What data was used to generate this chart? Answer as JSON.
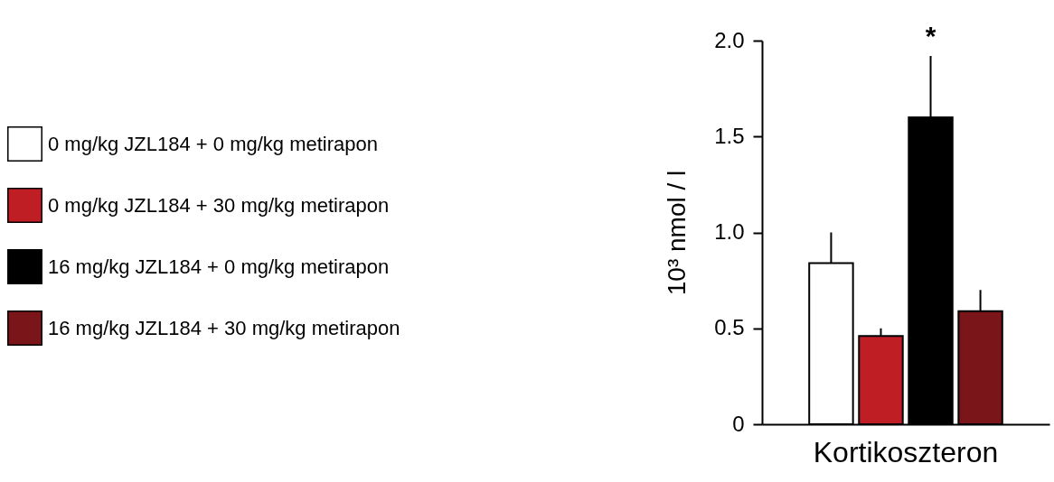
{
  "chart_data": {
    "type": "bar",
    "categories": [
      "Kortikoszteron"
    ],
    "ylabel": "10³ nmol / l",
    "series": [
      {
        "name": "0 mg/kg JZL184 + 0 mg/kg metirapon",
        "color": "#ffffff",
        "values": [
          0.84
        ],
        "errors": [
          [
            0.84,
            1.0
          ]
        ]
      },
      {
        "name": "0 mg/kg JZL184 + 30 mg/kg metirapon",
        "color": "#bf1e24",
        "values": [
          0.46
        ],
        "errors": [
          [
            0.46,
            0.5
          ]
        ]
      },
      {
        "name": "16 mg/kg JZL184 + 0 mg/kg metirapon",
        "color": "#000000",
        "values": [
          1.6
        ],
        "errors": [
          [
            1.6,
            1.92
          ]
        ]
      },
      {
        "name": "16 mg/kg JZL184 + 30 mg/kg metirapon",
        "color": "#7a1519",
        "values": [
          0.59
        ],
        "errors": [
          [
            0.59,
            0.7
          ]
        ]
      }
    ],
    "ylim": [
      0,
      2
    ],
    "yticks": [
      0,
      {
        "value": 0.5,
        "label": "0.5"
      },
      {
        "value": 1,
        "label": "1.0"
      },
      {
        "value": 1.5,
        "label": "1.5"
      },
      {
        "value": 2,
        "label": "2.0"
      }
    ],
    "annotations": [
      "*"
    ],
    "legend": "left",
    "grid": false
  }
}
